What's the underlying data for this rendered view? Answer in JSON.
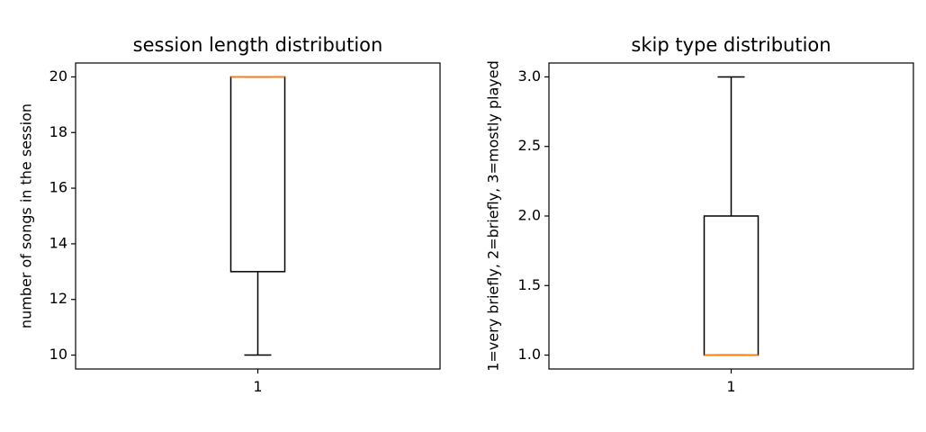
{
  "chart_data": [
    {
      "type": "box",
      "title": "session length distribution",
      "xlabel": "",
      "ylabel": "number of songs in the session",
      "categories": [
        "1"
      ],
      "ylim": [
        9.5,
        20.5
      ],
      "yticks": [
        10,
        12,
        14,
        16,
        18,
        20
      ],
      "grid": false,
      "box": {
        "whisker_low": 10,
        "q1": 13,
        "median": 20,
        "q3": 20,
        "whisker_high": 20
      },
      "colors": {
        "box": "#000000",
        "median": "#ff7f0e"
      }
    },
    {
      "type": "box",
      "title": "skip type distribution",
      "xlabel": "",
      "ylabel": "1=very briefly, 2=briefly, 3=mostly played",
      "categories": [
        "1"
      ],
      "ylim": [
        0.9,
        3.1
      ],
      "yticks": [
        1.0,
        1.5,
        2.0,
        2.5,
        3.0
      ],
      "grid": false,
      "box": {
        "whisker_low": 1,
        "q1": 1,
        "median": 1,
        "q3": 2,
        "whisker_high": 3
      },
      "colors": {
        "box": "#000000",
        "median": "#ff7f0e"
      }
    }
  ]
}
